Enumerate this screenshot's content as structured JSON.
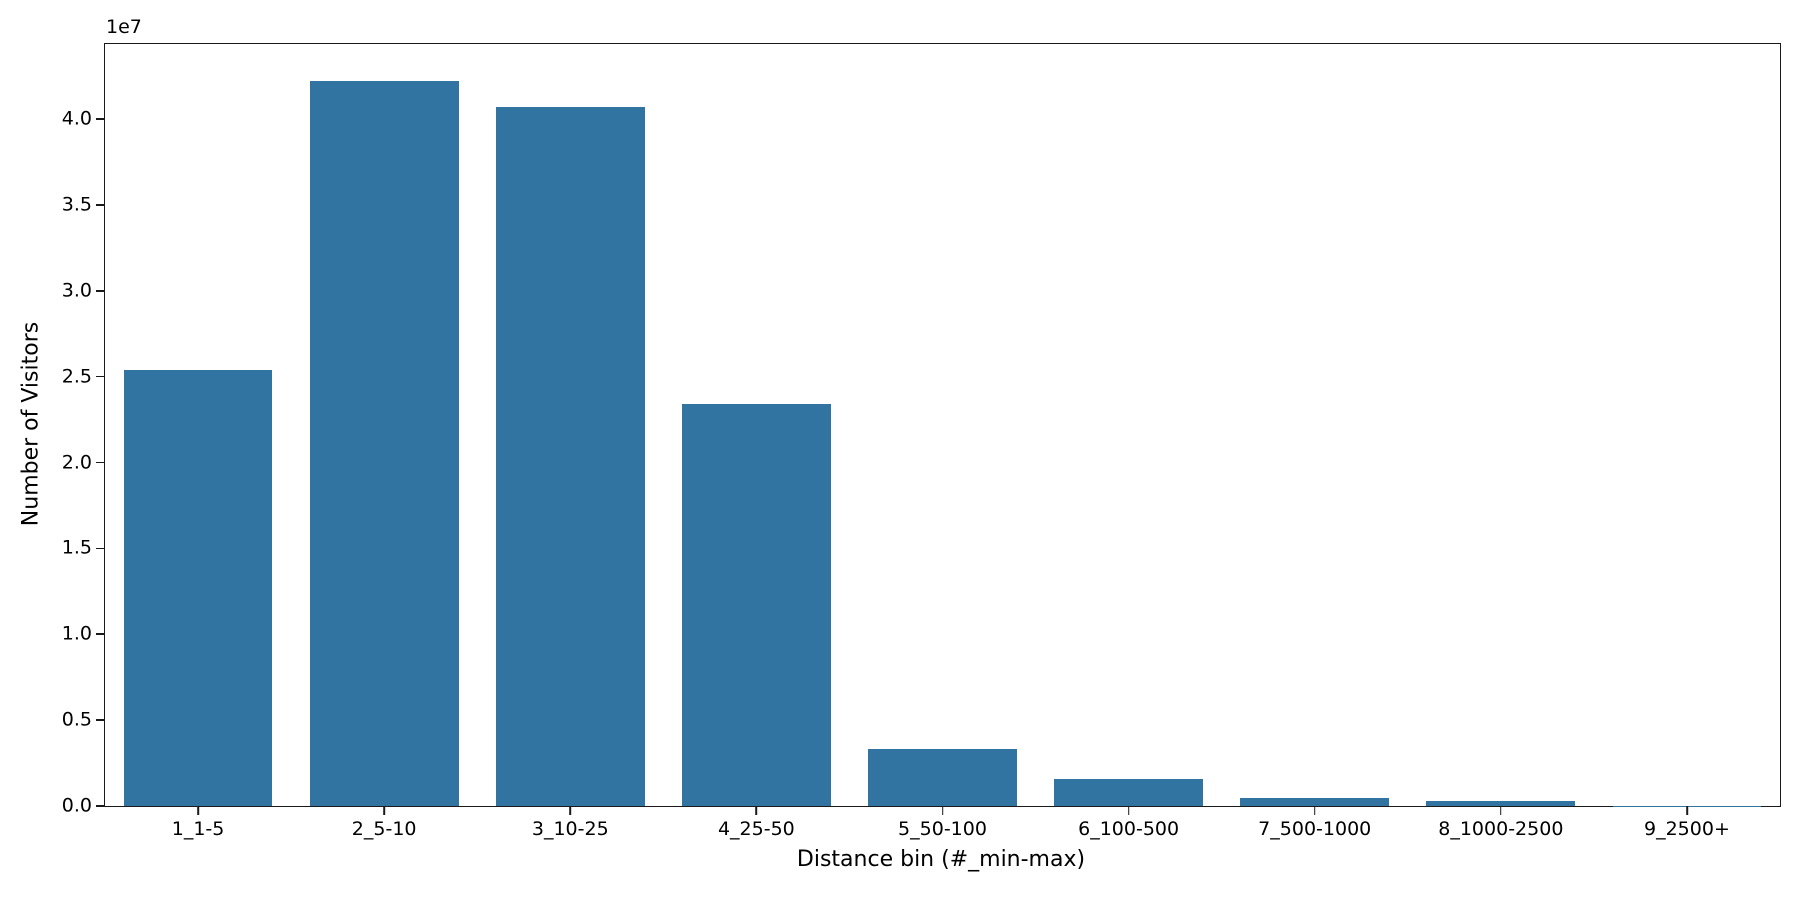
{
  "colors": {
    "bar": "#3274a1",
    "spine": "#1a1a1a",
    "text": "#000000",
    "background": "#ffffff"
  },
  "chart_data": {
    "type": "bar",
    "title": "",
    "xlabel": "Distance bin (#_min-max)",
    "ylabel": "Number of Visitors",
    "categories": [
      "1_1-5",
      "2_5-10",
      "3_10-25",
      "4_25-50",
      "5_50-100",
      "6_100-500",
      "7_500-1000",
      "8_1000-2500",
      "9_2500+"
    ],
    "values": [
      25400000,
      42200000,
      40700000,
      23400000,
      3300000,
      1600000,
      480000,
      270000,
      30000
    ],
    "ylim": [
      0,
      44370000
    ],
    "yticks": {
      "values": [
        0,
        5000000,
        10000000,
        15000000,
        20000000,
        25000000,
        30000000,
        35000000,
        40000000
      ],
      "labels": [
        "0.0",
        "0.5",
        "1.0",
        "1.5",
        "2.0",
        "2.5",
        "3.0",
        "3.5",
        "4.0"
      ],
      "offset_text": "1e7"
    },
    "bar_width_fraction": 0.8,
    "grid": false,
    "legend": "none"
  }
}
